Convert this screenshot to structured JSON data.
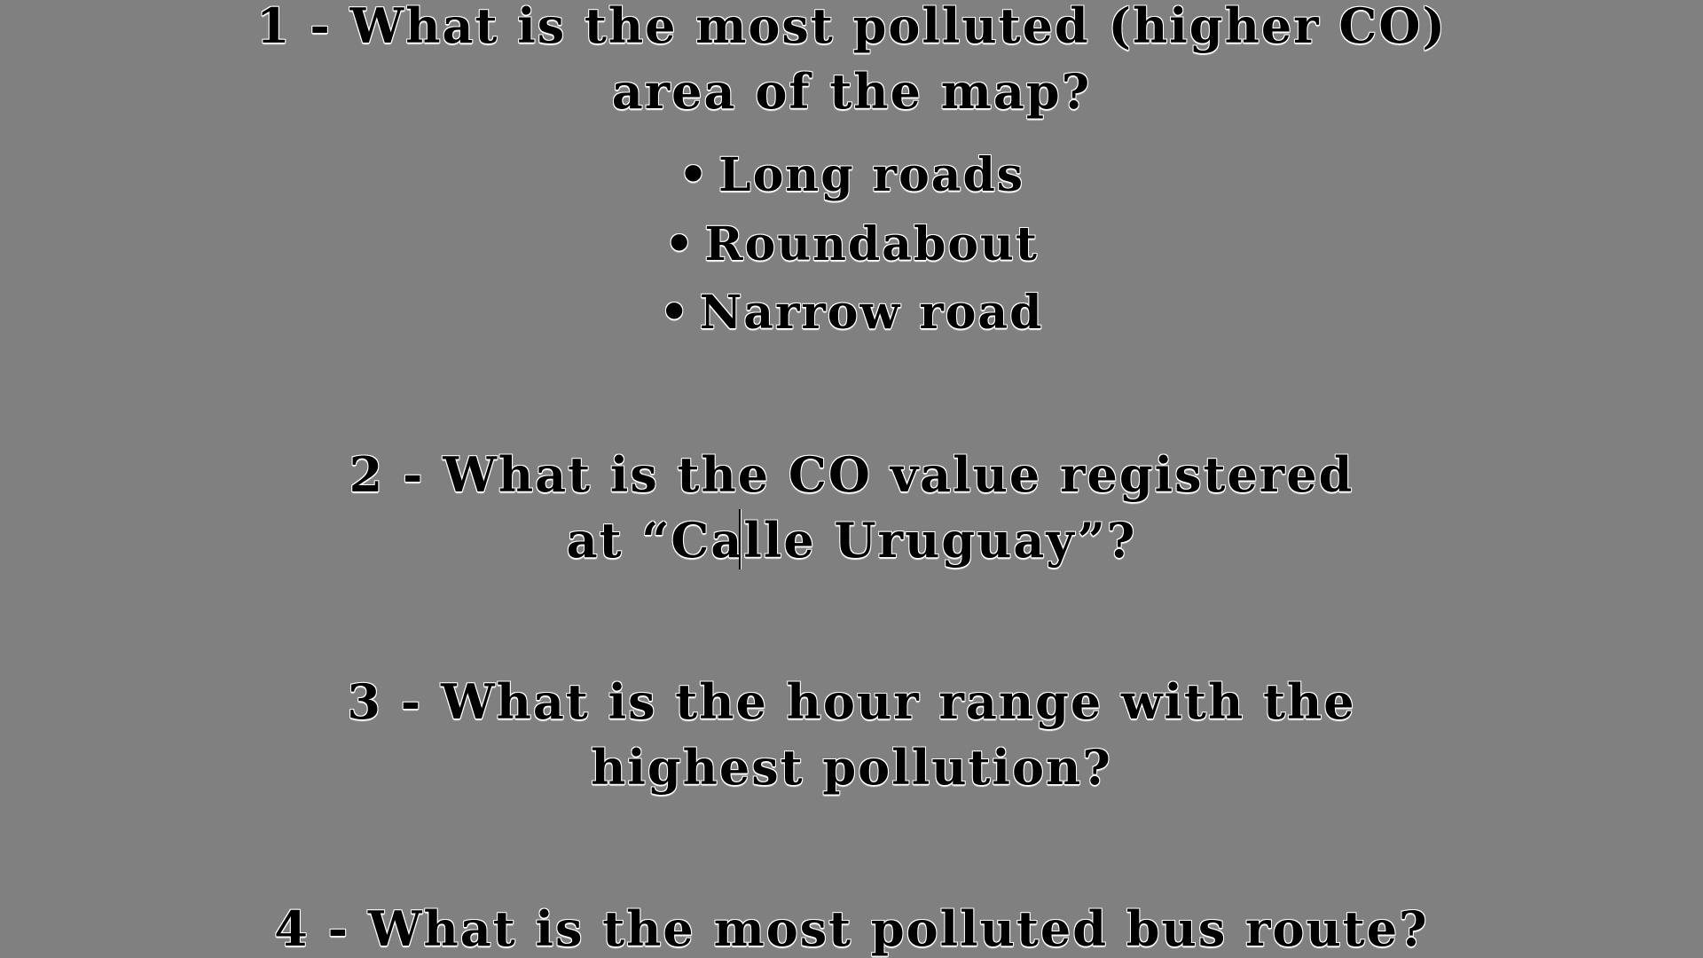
{
  "questions": {
    "q1": {
      "line1": "1 - What is the most polluted (higher CO)",
      "line2": "area of the map?",
      "options": [
        {
          "bullet": "•",
          "label": "Long roads"
        },
        {
          "bullet": "•",
          "label": "Roundabout"
        },
        {
          "bullet": "•",
          "label": "Narrow road"
        }
      ]
    },
    "q2": {
      "line1": "2 - What is the CO value registered",
      "line2": "at “Calle Uruguay”?"
    },
    "q3": {
      "line1": "3 - What is the hour range with the",
      "line2": "highest pollution?"
    },
    "q4": {
      "line1": "4 - What is the most polluted bus route?"
    }
  }
}
